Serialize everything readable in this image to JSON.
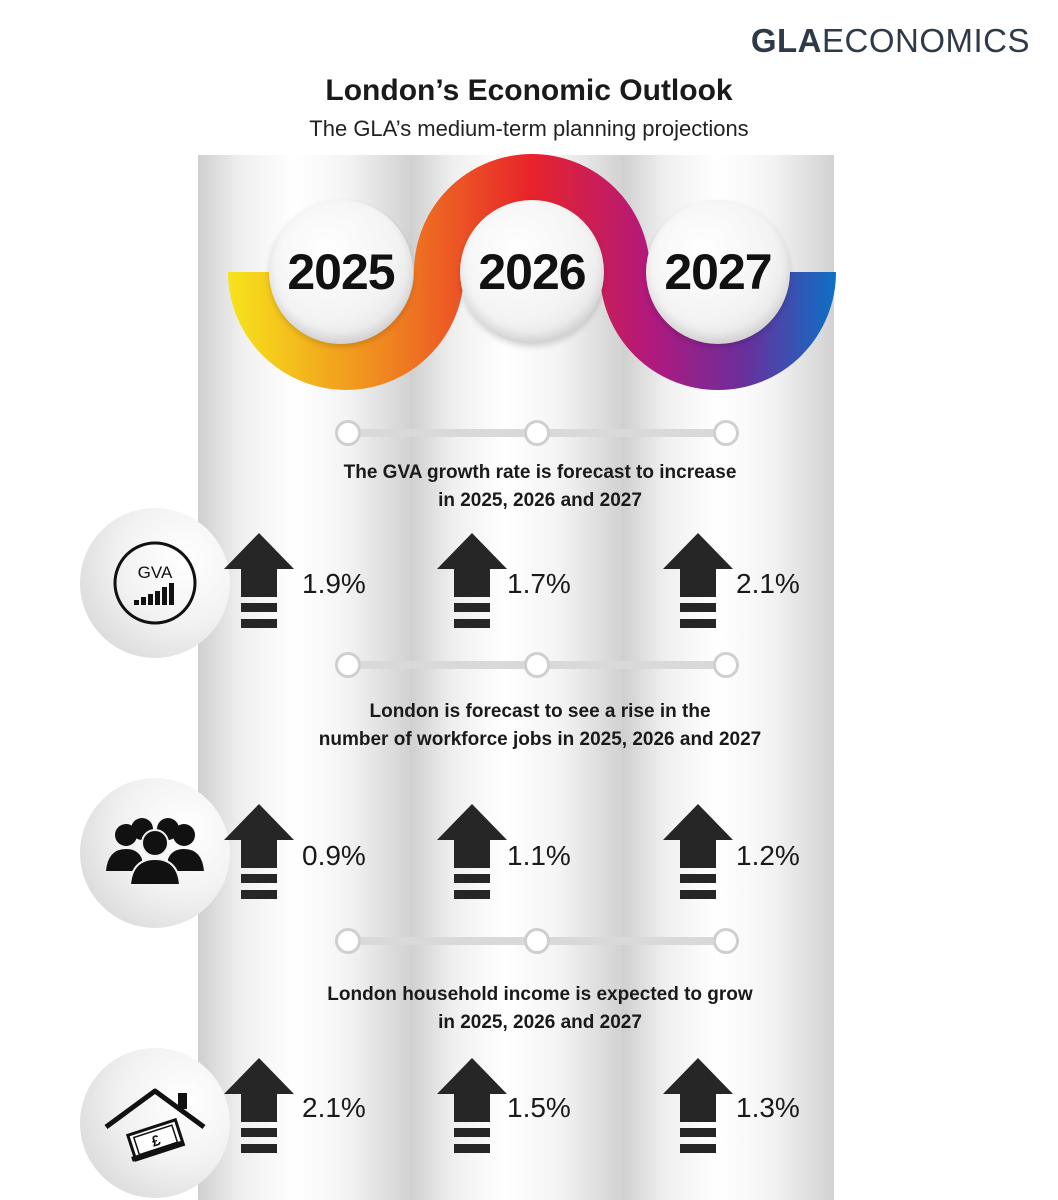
{
  "logo": {
    "bold": "GLA",
    "light": "ECONOMICS"
  },
  "title": "London’s Economic Outlook",
  "subtitle": "The GLA’s medium-term planning projections",
  "years": [
    "2025",
    "2026",
    "2027"
  ],
  "ribbon_colors": [
    "#f7e51b",
    "#f08a1f",
    "#e8232a",
    "#b0197e",
    "#6a2f9c",
    "#0e6fc5"
  ],
  "sections": [
    {
      "text_line1": "The GVA growth rate is forecast to increase",
      "text_line2": "in 2025, 2026 and 2027",
      "icon": "gva-chart-icon",
      "icon_label": "GVA",
      "values": [
        "1.9%",
        "1.7%",
        "2.1%"
      ]
    },
    {
      "text_line1": "London is forecast to see a rise in the",
      "text_line2": "number of workforce jobs in 2025, 2026 and 2027",
      "icon": "people-group-icon",
      "values": [
        "0.9%",
        "1.1%",
        "1.2%"
      ]
    },
    {
      "text_line1": "London household income is expected to grow",
      "text_line2": "in 2025, 2026 and 2027",
      "icon": "house-money-icon",
      "values": [
        "2.1%",
        "1.5%",
        "1.3%"
      ]
    }
  ],
  "trend": "up-arrow-icon",
  "arrow_color": "#262626"
}
